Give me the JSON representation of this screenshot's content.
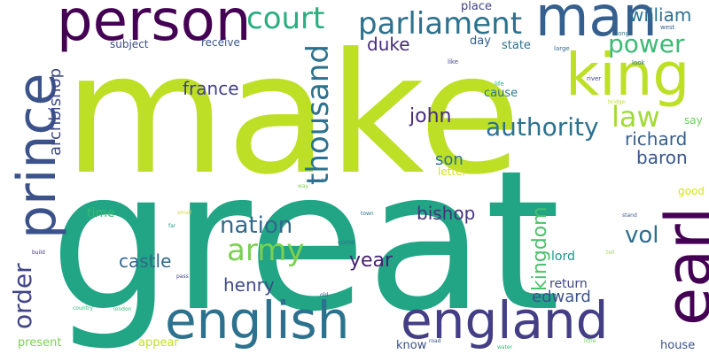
{
  "words": [
    {
      "text": "make",
      "color": "#bddf26"
    },
    {
      "text": "great",
      "color": "#21a585"
    },
    {
      "text": "english",
      "color": "#2c728e"
    },
    {
      "text": "england",
      "color": "#433e85"
    },
    {
      "text": "person",
      "color": "#440154"
    },
    {
      "text": "man",
      "color": "#355f8d"
    },
    {
      "text": "prince",
      "color": "#3b528b"
    },
    {
      "text": "king",
      "color": "#bddf26"
    },
    {
      "text": "earl",
      "color": "#440154"
    },
    {
      "text": "parliament",
      "color": "#2c728e"
    },
    {
      "text": "thousand",
      "color": "#2c728e"
    },
    {
      "text": "court",
      "color": "#29af7f"
    },
    {
      "text": "power",
      "color": "#3bbb75"
    },
    {
      "text": "law",
      "color": "#a2da37"
    },
    {
      "text": "army",
      "color": "#7ad151"
    },
    {
      "text": "authority",
      "color": "#2c728e"
    },
    {
      "text": "order",
      "color": "#414487"
    },
    {
      "text": "nation",
      "color": "#31688e"
    },
    {
      "text": "archbishop",
      "color": "#3e4a89"
    },
    {
      "text": "william",
      "color": "#2c728e"
    },
    {
      "text": "duke",
      "color": "#472d7b"
    },
    {
      "text": "france",
      "color": "#424086"
    },
    {
      "text": "richard",
      "color": "#355f8d"
    },
    {
      "text": "baron",
      "color": "#39568c"
    },
    {
      "text": "john",
      "color": "#472d7b"
    },
    {
      "text": "son",
      "color": "#2c728e"
    },
    {
      "text": "kingdom",
      "color": "#4ac16d"
    },
    {
      "text": "bishop",
      "color": "#46337f"
    },
    {
      "text": "castle",
      "color": "#31688e"
    },
    {
      "text": "year",
      "color": "#482173"
    },
    {
      "text": "henry",
      "color": "#3e4a89"
    },
    {
      "text": "edward",
      "color": "#3b528b"
    },
    {
      "text": "vol",
      "color": "#2f6c8e"
    },
    {
      "text": "time",
      "color": "#38b977"
    },
    {
      "text": "place",
      "color": "#404387"
    },
    {
      "text": "day",
      "color": "#35608d"
    },
    {
      "text": "state",
      "color": "#2d708e"
    },
    {
      "text": "subject",
      "color": "#3d4d8a"
    },
    {
      "text": "receive",
      "color": "#38598c"
    },
    {
      "text": "cause",
      "color": "#2a788e"
    },
    {
      "text": "return",
      "color": "#414487"
    },
    {
      "text": "lord",
      "color": "#21918c"
    },
    {
      "text": "say",
      "color": "#6ccd5a"
    },
    {
      "text": "good",
      "color": "#d8e219"
    },
    {
      "text": "letter",
      "color": "#d2e21b"
    },
    {
      "text": "present",
      "color": "#7ad151"
    },
    {
      "text": "appear",
      "color": "#c2df23"
    },
    {
      "text": "know",
      "color": "#3b528b"
    },
    {
      "text": "house",
      "color": "#3b528b"
    },
    {
      "text": "large",
      "color": "#31688e"
    },
    {
      "text": "long",
      "color": "#2c728e"
    },
    {
      "text": "west",
      "color": "#355f8d"
    },
    {
      "text": "like",
      "color": "#404688"
    },
    {
      "text": "look",
      "color": "#2c728e"
    },
    {
      "text": "life",
      "color": "#29af7f"
    },
    {
      "text": "river",
      "color": "#414487"
    },
    {
      "text": "bridge",
      "color": "#bddf26"
    },
    {
      "text": "land",
      "color": "#31688e"
    },
    {
      "text": "way",
      "color": "#7fd34e"
    },
    {
      "text": "small",
      "color": "#d8e219"
    },
    {
      "text": "town",
      "color": "#2c728e"
    },
    {
      "text": "far",
      "color": "#1f9e89"
    },
    {
      "text": "stand",
      "color": "#3b528b"
    },
    {
      "text": "tell",
      "color": "#a8db34"
    },
    {
      "text": "come",
      "color": "#2c728e"
    },
    {
      "text": "pass",
      "color": "#404387"
    },
    {
      "text": "old",
      "color": "#3b528b"
    },
    {
      "text": "build",
      "color": "#46337f"
    },
    {
      "text": "country",
      "color": "#35b779"
    },
    {
      "text": "london",
      "color": "#35b779"
    },
    {
      "text": "road",
      "color": "#3b528b"
    },
    {
      "text": "water",
      "color": "#38b977"
    },
    {
      "text": "little",
      "color": "#6ccd5a"
    }
  ]
}
